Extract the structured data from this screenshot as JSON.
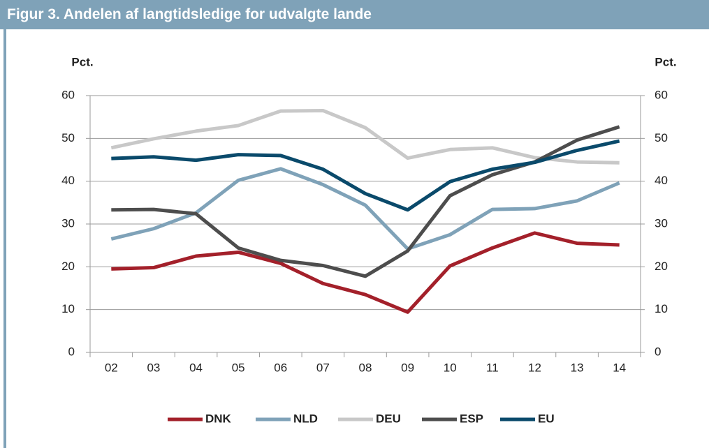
{
  "chart_data": {
    "type": "line",
    "title": "Figur 3. Andelen af langtidsledige for udvalgte lande",
    "y_label": "Pct.",
    "y2_label": "Pct.",
    "categories": [
      "02",
      "03",
      "04",
      "05",
      "06",
      "07",
      "08",
      "09",
      "10",
      "11",
      "12",
      "13",
      "14"
    ],
    "series": [
      {
        "name": "DNK",
        "color": "#a3202a",
        "values": [
          19.5,
          19.8,
          22.5,
          23.4,
          20.8,
          16.1,
          13.5,
          9.4,
          20.2,
          24.4,
          27.9,
          25.5,
          25.1
        ]
      },
      {
        "name": "NLD",
        "color": "#7fa2b8",
        "values": [
          26.5,
          28.9,
          32.6,
          40.2,
          42.9,
          39.2,
          34.4,
          24.2,
          27.5,
          33.4,
          33.6,
          35.4,
          39.6
        ]
      },
      {
        "name": "DEU",
        "color": "#c8c8c8",
        "values": [
          47.8,
          49.9,
          51.7,
          53.0,
          56.4,
          56.5,
          52.5,
          45.4,
          47.4,
          47.8,
          45.5,
          44.5,
          44.3
        ]
      },
      {
        "name": "ESP",
        "color": "#4d4d4d",
        "values": [
          33.3,
          33.4,
          32.4,
          24.4,
          21.5,
          20.3,
          17.8,
          23.7,
          36.6,
          41.5,
          44.5,
          49.6,
          52.7
        ]
      },
      {
        "name": "EU",
        "color": "#0a4a6b",
        "values": [
          45.3,
          45.7,
          44.9,
          46.2,
          46.0,
          42.8,
          37.1,
          33.3,
          39.9,
          42.8,
          44.4,
          47.2,
          49.4
        ]
      }
    ],
    "ylim": [
      0,
      60
    ],
    "yticks": [
      0,
      10,
      20,
      30,
      40,
      50,
      60
    ],
    "y2lim": [
      0,
      60
    ],
    "y2ticks": [
      0,
      10,
      20,
      30,
      40,
      50,
      60
    ],
    "grid": true,
    "legend": "bottom"
  }
}
